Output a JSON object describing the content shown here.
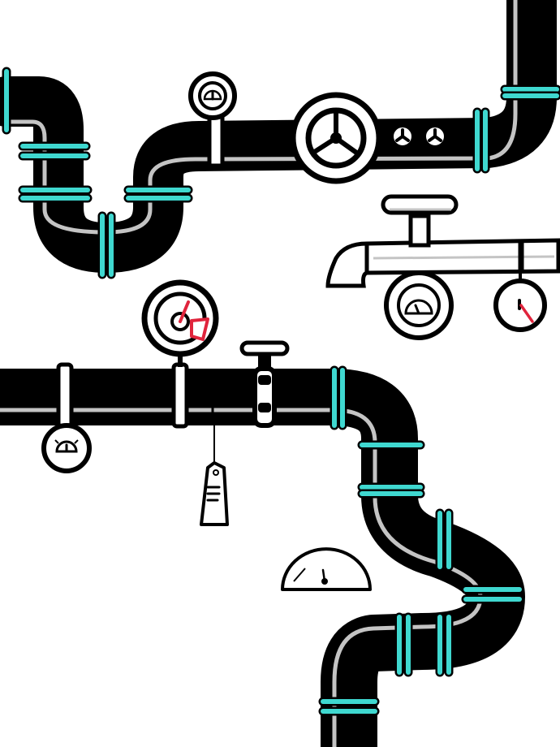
{
  "colors": {
    "background": "#ffffff",
    "outline": "#000000",
    "pipe_highlight": "#c4c4c4",
    "coupling_accent": "#3fd8d0",
    "needle_accent": "#e0243c"
  },
  "icons": {
    "valve": "handwheel-valve-icon",
    "gauge": "pressure-gauge-icon",
    "tag": "hanging-tag-icon",
    "meter": "half-dial-meter-icon"
  },
  "gauges": {
    "top_small": {
      "level": 0.5
    },
    "red_needle_large": {
      "level": 0.2
    },
    "rack_left": {
      "level": 0.4
    },
    "rack_right": {
      "level": 0.6
    },
    "hanging_lower_left": {
      "level": 0.5
    },
    "half_dial_meter": {
      "level": 0.55
    }
  }
}
